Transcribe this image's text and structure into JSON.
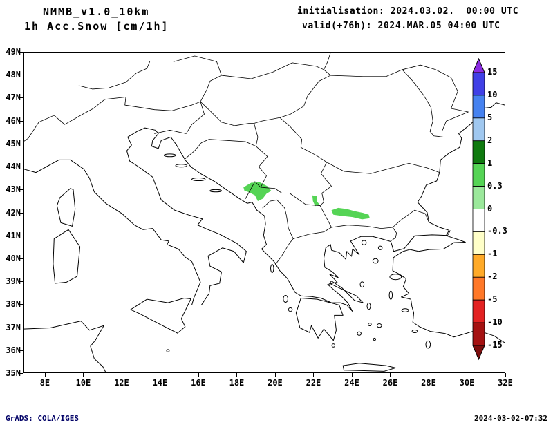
{
  "header": {
    "model": "NMMB_v1.0_10km",
    "product": "1h Acc.Snow [cm/1h]",
    "init": "initialisation: 2024.03.02.  00:00 UTC",
    "valid": "valid(+76h): 2024.MAR.05 04:00 UTC"
  },
  "map": {
    "y_ticks": [
      "49N",
      "48N",
      "47N",
      "46N",
      "45N",
      "44N",
      "43N",
      "42N",
      "41N",
      "40N",
      "39N",
      "38N",
      "37N",
      "36N",
      "35N"
    ],
    "x_ticks": [
      "8E",
      "10E",
      "12E",
      "14E",
      "16E",
      "18E",
      "20E",
      "22E",
      "24E",
      "26E",
      "28E",
      "30E",
      "32E"
    ]
  },
  "colorbar": {
    "labels": [
      "15",
      "10",
      "5",
      "2",
      "1",
      "0.3",
      "0",
      "-0.3",
      "-1",
      "-2",
      "-5",
      "-10",
      "-15"
    ],
    "segment_colors": [
      "#4040e6",
      "#4682f0",
      "#a0c8f0",
      "#0f7a0f",
      "#55d455",
      "#9be89b",
      "#ffffff",
      "#ffffc8",
      "#ffaa28",
      "#ff7828",
      "#e32222",
      "#a51212"
    ],
    "arrow_top_color": "#8a2be2",
    "arrow_bottom_color": "#7d0e0e"
  },
  "footer": {
    "left": "GrADS: COLA/IGES",
    "right": "2024-03-02-07:32"
  },
  "chart_data": {
    "type": "map_shaded_contour",
    "title": "1h Acc.Snow [cm/1h]",
    "model": "NMMB_v1.0_10km",
    "initialisation": "2024.03.02. 00:00 UTC",
    "valid": "2024.MAR.05 04:00 UTC (+76h)",
    "lon_range_deg_e": [
      6.85,
      32
    ],
    "lat_range_deg_n": [
      35,
      49
    ],
    "colorbar_levels_cm": [
      15,
      10,
      5,
      2,
      1,
      0.3,
      0,
      -0.3,
      -1,
      -2,
      -5,
      -10,
      -15
    ],
    "shaded_regions": [
      {
        "value_cm": "0.3-1",
        "color_hex": "#55d455",
        "polygon_lonlat": [
          [
            18.35,
            43.1
          ],
          [
            18.75,
            43.3
          ],
          [
            19.2,
            43.32
          ],
          [
            19.6,
            43.15
          ],
          [
            19.8,
            42.95
          ],
          [
            19.55,
            42.82
          ],
          [
            19.35,
            42.6
          ],
          [
            19.1,
            42.5
          ],
          [
            18.95,
            42.75
          ],
          [
            18.6,
            42.9
          ],
          [
            18.4,
            42.95
          ]
        ]
      },
      {
        "value_cm": "0.3-1",
        "color_hex": "#55d455",
        "polygon_lonlat": [
          [
            21.95,
            42.75
          ],
          [
            22.2,
            42.72
          ],
          [
            22.18,
            42.5
          ],
          [
            22.32,
            42.35
          ],
          [
            22.1,
            42.28
          ],
          [
            21.98,
            42.5
          ]
        ]
      },
      {
        "value_cm": "0.3-1",
        "color_hex": "#55d455",
        "polygon_lonlat": [
          [
            22.95,
            42.1
          ],
          [
            23.3,
            42.2
          ],
          [
            23.75,
            42.15
          ],
          [
            24.2,
            42.05
          ],
          [
            24.6,
            41.98
          ],
          [
            24.9,
            41.9
          ],
          [
            24.95,
            41.75
          ],
          [
            24.55,
            41.7
          ],
          [
            24.05,
            41.8
          ],
          [
            23.5,
            41.85
          ],
          [
            23.05,
            41.9
          ]
        ]
      }
    ]
  }
}
